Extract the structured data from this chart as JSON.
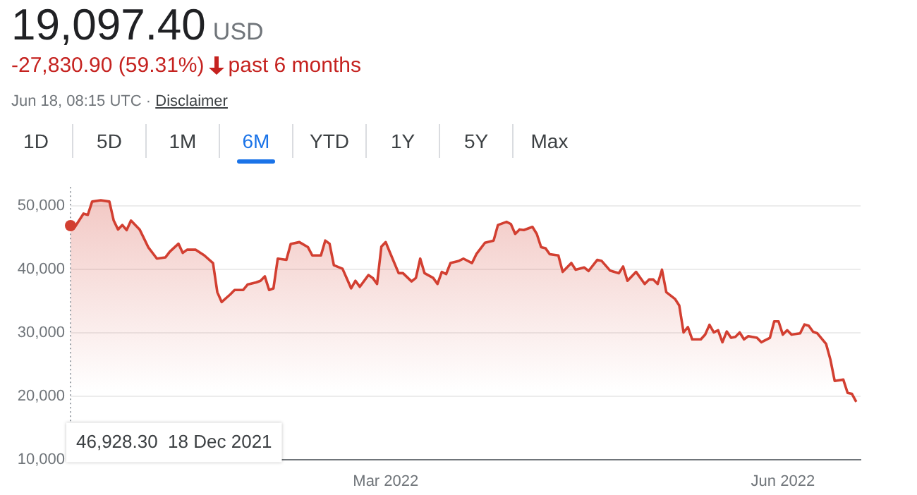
{
  "chart_data": {
    "type": "area",
    "title": "19,097.40",
    "annotations": [
      "USD",
      "-27,830.90 (59.31%)",
      "past 6 months",
      "Jun 18, 08:15 UTC ·",
      "Disclaimer",
      "1D",
      "5D",
      "1M",
      "6M",
      "YTD",
      "1Y",
      "5Y",
      "Max",
      "46,928.30  18 Dec 2021"
    ],
    "x": [
      "2021-12-18",
      "2021-12-19",
      "2021-12-21",
      "2021-12-22",
      "2021-12-23",
      "2021-12-25",
      "2021-12-27",
      "2021-12-28",
      "2021-12-29",
      "2021-12-30",
      "2021-12-31",
      "2022-01-01",
      "2022-01-03",
      "2022-01-05",
      "2022-01-07",
      "2022-01-09",
      "2022-01-10",
      "2022-01-12",
      "2022-01-13",
      "2022-01-14",
      "2022-01-16",
      "2022-01-18",
      "2022-01-20",
      "2022-01-21",
      "2022-01-22",
      "2022-01-24",
      "2022-01-25",
      "2022-01-27",
      "2022-01-28",
      "2022-01-30",
      "2022-01-31",
      "2022-02-01",
      "2022-02-02",
      "2022-02-03",
      "2022-02-04",
      "2022-02-06",
      "2022-02-07",
      "2022-02-09",
      "2022-02-11",
      "2022-02-12",
      "2022-02-14",
      "2022-02-15",
      "2022-02-16",
      "2022-02-17",
      "2022-02-19",
      "2022-02-20",
      "2022-02-21",
      "2022-02-22",
      "2022-02-23",
      "2022-02-25",
      "2022-02-26",
      "2022-02-27",
      "2022-02-28",
      "2022-03-01",
      "2022-03-02",
      "2022-03-04",
      "2022-03-05",
      "2022-03-07",
      "2022-03-08",
      "2022-03-09",
      "2022-03-10",
      "2022-03-12",
      "2022-03-13",
      "2022-03-14",
      "2022-03-15",
      "2022-03-16",
      "2022-03-18",
      "2022-03-19",
      "2022-03-21",
      "2022-03-22",
      "2022-03-24",
      "2022-03-26",
      "2022-03-27",
      "2022-03-29",
      "2022-03-30",
      "2022-03-31",
      "2022-04-01",
      "2022-04-02",
      "2022-04-04",
      "2022-04-05",
      "2022-04-06",
      "2022-04-07",
      "2022-04-08",
      "2022-04-10",
      "2022-04-11",
      "2022-04-13",
      "2022-04-14",
      "2022-04-16",
      "2022-04-17",
      "2022-04-19",
      "2022-04-20",
      "2022-04-22",
      "2022-04-24",
      "2022-04-25",
      "2022-04-26",
      "2022-04-28",
      "2022-04-30",
      "2022-05-01",
      "2022-05-02",
      "2022-05-03",
      "2022-05-04",
      "2022-05-05",
      "2022-05-07",
      "2022-05-08",
      "2022-05-09",
      "2022-05-10",
      "2022-05-11",
      "2022-05-13",
      "2022-05-14",
      "2022-05-15",
      "2022-05-16",
      "2022-05-17",
      "2022-05-18",
      "2022-05-19",
      "2022-05-20",
      "2022-05-21",
      "2022-05-22",
      "2022-05-23",
      "2022-05-24",
      "2022-05-26",
      "2022-05-27",
      "2022-05-29",
      "2022-05-30",
      "2022-05-31",
      "2022-06-01",
      "2022-06-02",
      "2022-06-03",
      "2022-06-05",
      "2022-06-06",
      "2022-06-07",
      "2022-06-08",
      "2022-06-09",
      "2022-06-11",
      "2022-06-12",
      "2022-06-13",
      "2022-06-15",
      "2022-06-16",
      "2022-06-17",
      "2022-06-18"
    ],
    "series": [
      {
        "color": "#d23f31",
        "values": [
          46900,
          46670,
          48800,
          48600,
          50700,
          50900,
          50700,
          47700,
          46300,
          47000,
          46200,
          47700,
          46300,
          43500,
          41700,
          41900,
          42800,
          44050,
          42600,
          43100,
          43100,
          42200,
          41000,
          36400,
          34850,
          36050,
          36750,
          36750,
          37600,
          37950,
          38200,
          38900,
          36750,
          37000,
          41700,
          41500,
          44000,
          44300,
          43500,
          42200,
          42200,
          44550,
          44050,
          40650,
          40100,
          38550,
          37000,
          38200,
          37250,
          39100,
          38650,
          37700,
          43600,
          44300,
          42650,
          39400,
          39400,
          38100,
          38650,
          41700,
          39400,
          38650,
          37700,
          39600,
          39250,
          41000,
          41350,
          41700,
          41000,
          42400,
          44200,
          44550,
          47000,
          47500,
          47150,
          45600,
          46300,
          46200,
          46700,
          45600,
          43500,
          43350,
          42400,
          42200,
          39600,
          41000,
          39950,
          40300,
          39750,
          41500,
          41350,
          39800,
          39400,
          40450,
          38200,
          39600,
          37700,
          38400,
          38400,
          37700,
          39950,
          36400,
          35350,
          34300,
          30050,
          30900,
          28950,
          28950,
          29700,
          31250,
          30050,
          30400,
          28500,
          30200,
          29200,
          29350,
          30050,
          28950,
          29450,
          29200,
          28500,
          29200,
          31800,
          31800,
          29700,
          30400,
          29700,
          29900,
          31300,
          31100,
          30150,
          29900,
          28250,
          25800,
          22400,
          22600,
          20500,
          20350,
          19100
        ]
      }
    ],
    "xlim": [
      "2021-12-18",
      "2022-06-19"
    ],
    "xticks": [
      {
        "value": "2022-03-01",
        "label": "Mar 2022"
      },
      {
        "value": "2022-06-01",
        "label": "Jun 2022"
      }
    ],
    "ylim": [
      10000,
      53000
    ],
    "yticks": [
      {
        "value": 10000,
        "label": "10,000"
      },
      {
        "value": 20000,
        "label": "20,000"
      },
      {
        "value": 30000,
        "label": "30,000"
      },
      {
        "value": 40000,
        "label": "40,000"
      },
      {
        "value": 50000,
        "label": "50,000"
      }
    ],
    "grid": "y",
    "legend": false,
    "marker": "none",
    "line_style": "solid"
  }
}
